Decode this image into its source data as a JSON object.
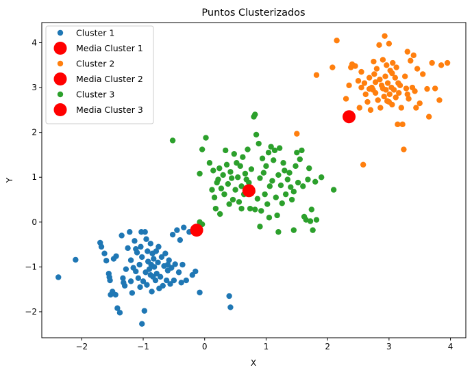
{
  "chart_data": {
    "type": "scatter",
    "title": "Puntos Clusterizados",
    "xlabel": "X",
    "ylabel": "Y",
    "xlim": [
      -2.65,
      4.25
    ],
    "ylim": [
      -2.58,
      4.45
    ],
    "xticks": [
      -2,
      -1,
      0,
      1,
      2,
      3,
      4
    ],
    "yticks": [
      -2,
      -1,
      0,
      1,
      2,
      3,
      4
    ],
    "grid": false,
    "legend_position": "top-left",
    "series": [
      {
        "name": "Cluster 1",
        "color": "#1f77b4",
        "marker": "small",
        "points": [
          [
            -2.38,
            -1.23
          ],
          [
            -2.1,
            -0.84
          ],
          [
            -1.7,
            -0.46
          ],
          [
            -1.68,
            -0.55
          ],
          [
            -1.63,
            -0.7
          ],
          [
            -1.6,
            -0.86
          ],
          [
            -1.56,
            -1.15
          ],
          [
            -1.55,
            -1.23
          ],
          [
            -1.54,
            -1.3
          ],
          [
            -1.53,
            -1.62
          ],
          [
            -1.5,
            -1.55
          ],
          [
            -1.48,
            -0.82
          ],
          [
            -1.44,
            -0.76
          ],
          [
            -1.42,
            -1.92
          ],
          [
            -1.38,
            -2.02
          ],
          [
            -1.35,
            -0.3
          ],
          [
            -1.33,
            -1.25
          ],
          [
            -1.32,
            -1.35
          ],
          [
            -1.28,
            -1.05
          ],
          [
            -1.25,
            -0.58
          ],
          [
            -1.22,
            -0.22
          ],
          [
            -1.2,
            -0.85
          ],
          [
            -1.18,
            -1.58
          ],
          [
            -1.16,
            -1.02
          ],
          [
            -1.14,
            -0.42
          ],
          [
            -1.12,
            -1.1
          ],
          [
            -1.1,
            -0.68
          ],
          [
            -1.08,
            -1.25
          ],
          [
            -1.06,
            -0.95
          ],
          [
            -1.05,
            -1.45
          ],
          [
            -1.04,
            -0.55
          ],
          [
            -1.03,
            -0.22
          ],
          [
            -1.02,
            -0.78
          ],
          [
            -1.0,
            -1.32
          ],
          [
            -0.98,
            -1.98
          ],
          [
            -0.97,
            -0.22
          ],
          [
            -0.96,
            -1.12
          ],
          [
            -0.95,
            -0.38
          ],
          [
            -0.94,
            -1.4
          ],
          [
            -0.93,
            -0.65
          ],
          [
            -0.92,
            -0.88
          ],
          [
            -0.9,
            -1.05
          ],
          [
            -0.88,
            -1.18
          ],
          [
            -0.87,
            -0.95
          ],
          [
            -0.86,
            -1.55
          ],
          [
            -0.85,
            -0.7
          ],
          [
            -0.84,
            -1.22
          ],
          [
            -0.83,
            -0.82
          ],
          [
            -0.82,
            -1.0
          ],
          [
            -0.8,
            -1.3
          ],
          [
            -0.79,
            -0.65
          ],
          [
            -0.78,
            -1.15
          ],
          [
            -0.76,
            -0.9
          ],
          [
            -0.75,
            -0.55
          ],
          [
            -0.74,
            -1.48
          ],
          [
            -0.72,
            -1.22
          ],
          [
            -0.7,
            -0.78
          ],
          [
            -0.68,
            -1.42
          ],
          [
            -0.66,
            -0.98
          ],
          [
            -0.64,
            -0.7
          ],
          [
            -0.62,
            -1.3
          ],
          [
            -0.6,
            -1.08
          ],
          [
            -0.58,
            -0.85
          ],
          [
            -0.56,
            -1.38
          ],
          [
            -0.54,
            -1.02
          ],
          [
            -0.52,
            -0.28
          ],
          [
            -0.5,
            -1.3
          ],
          [
            -0.48,
            -0.94
          ],
          [
            -0.45,
            -0.18
          ],
          [
            -0.42,
            -1.12
          ],
          [
            -0.4,
            -0.4
          ],
          [
            -0.38,
            -1.35
          ],
          [
            -0.36,
            -0.95
          ],
          [
            -0.34,
            -0.12
          ],
          [
            -0.3,
            -1.3
          ],
          [
            -0.25,
            -0.22
          ],
          [
            -0.2,
            -1.18
          ],
          [
            -0.15,
            -1.1
          ],
          [
            -0.08,
            -1.57
          ],
          [
            0.4,
            -1.65
          ],
          [
            0.42,
            -1.9
          ],
          [
            -1.02,
            -2.27
          ],
          [
            -1.3,
            -1.42
          ],
          [
            -1.45,
            -1.62
          ],
          [
            -1.12,
            -0.6
          ],
          [
            -0.88,
            -0.48
          ],
          [
            -0.6,
            -0.95
          ],
          [
            -1.2,
            -1.32
          ]
        ]
      },
      {
        "name": "Cluster 2",
        "color": "#ff7f0e",
        "marker": "small",
        "points": [
          [
            1.5,
            1.97
          ],
          [
            1.82,
            3.28
          ],
          [
            2.08,
            3.45
          ],
          [
            2.15,
            4.05
          ],
          [
            2.3,
            2.75
          ],
          [
            2.35,
            3.05
          ],
          [
            2.38,
            3.45
          ],
          [
            2.4,
            3.52
          ],
          [
            2.45,
            3.48
          ],
          [
            2.5,
            3.15
          ],
          [
            2.52,
            2.55
          ],
          [
            2.55,
            3.0
          ],
          [
            2.58,
            1.28
          ],
          [
            2.6,
            3.1
          ],
          [
            2.62,
            2.85
          ],
          [
            2.65,
            2.68
          ],
          [
            2.68,
            3.22
          ],
          [
            2.7,
            2.5
          ],
          [
            2.72,
            3.0
          ],
          [
            2.74,
            2.95
          ],
          [
            2.75,
            3.58
          ],
          [
            2.76,
            3.3
          ],
          [
            2.78,
            2.88
          ],
          [
            2.8,
            3.42
          ],
          [
            2.82,
            2.72
          ],
          [
            2.84,
            3.95
          ],
          [
            2.86,
            2.55
          ],
          [
            2.88,
            3.05
          ],
          [
            2.9,
            3.62
          ],
          [
            2.92,
            2.8
          ],
          [
            2.93,
            4.15
          ],
          [
            2.94,
            3.25
          ],
          [
            2.95,
            2.95
          ],
          [
            2.96,
            3.5
          ],
          [
            2.97,
            2.7
          ],
          [
            2.98,
            3.1
          ],
          [
            3.0,
            3.98
          ],
          [
            3.01,
            2.85
          ],
          [
            3.02,
            3.38
          ],
          [
            3.04,
            3.0
          ],
          [
            3.05,
            2.62
          ],
          [
            3.06,
            3.55
          ],
          [
            3.08,
            2.95
          ],
          [
            3.1,
            3.22
          ],
          [
            3.11,
            2.78
          ],
          [
            3.12,
            3.45
          ],
          [
            3.14,
            2.18
          ],
          [
            3.16,
            2.88
          ],
          [
            3.18,
            3.05
          ],
          [
            3.2,
            2.55
          ],
          [
            3.22,
            2.18
          ],
          [
            3.24,
            1.62
          ],
          [
            3.26,
            3.25
          ],
          [
            3.28,
            2.98
          ],
          [
            3.3,
            3.8
          ],
          [
            3.32,
            2.75
          ],
          [
            3.35,
            3.6
          ],
          [
            3.38,
            3.0
          ],
          [
            3.4,
            3.72
          ],
          [
            3.42,
            2.92
          ],
          [
            3.44,
            2.55
          ],
          [
            3.46,
            3.42
          ],
          [
            3.5,
            2.65
          ],
          [
            3.55,
            3.3
          ],
          [
            3.62,
            2.97
          ],
          [
            3.65,
            2.35
          ],
          [
            3.7,
            3.55
          ],
          [
            3.75,
            2.98
          ],
          [
            3.82,
            2.72
          ],
          [
            3.85,
            3.5
          ],
          [
            3.95,
            3.55
          ],
          [
            2.55,
            3.35
          ],
          [
            2.68,
            2.97
          ],
          [
            2.85,
            3.18
          ],
          [
            3.0,
            2.68
          ],
          [
            3.15,
            3.1
          ],
          [
            3.3,
            2.85
          ],
          [
            3.05,
            3.32
          ],
          [
            2.9,
            2.98
          ],
          [
            2.78,
            3.12
          ]
        ]
      },
      {
        "name": "Cluster 3",
        "color": "#2ca02c",
        "marker": "small",
        "points": [
          [
            -0.52,
            1.82
          ],
          [
            -0.08,
            0.0
          ],
          [
            -0.04,
            -0.05
          ],
          [
            -0.08,
            1.08
          ],
          [
            -0.04,
            1.62
          ],
          [
            0.02,
            1.88
          ],
          [
            0.08,
            1.32
          ],
          [
            0.12,
            0.72
          ],
          [
            0.14,
            1.15
          ],
          [
            0.16,
            0.55
          ],
          [
            0.18,
            0.3
          ],
          [
            0.2,
            0.88
          ],
          [
            0.22,
            0.95
          ],
          [
            0.24,
            1.2
          ],
          [
            0.25,
            0.18
          ],
          [
            0.27,
            0.75
          ],
          [
            0.3,
            1.05
          ],
          [
            0.32,
            0.62
          ],
          [
            0.34,
            1.6
          ],
          [
            0.36,
            1.28
          ],
          [
            0.38,
            0.85
          ],
          [
            0.4,
            0.4
          ],
          [
            0.42,
            1.12
          ],
          [
            0.44,
            0.98
          ],
          [
            0.46,
            0.5
          ],
          [
            0.48,
            1.52
          ],
          [
            0.5,
            0.72
          ],
          [
            0.52,
            1.32
          ],
          [
            0.54,
            1.0
          ],
          [
            0.56,
            0.45
          ],
          [
            0.58,
            1.25
          ],
          [
            0.6,
            0.8
          ],
          [
            0.62,
            1.45
          ],
          [
            0.64,
            0.62
          ],
          [
            0.66,
            1.08
          ],
          [
            0.68,
            0.95
          ],
          [
            0.7,
            1.62
          ],
          [
            0.72,
            0.88
          ],
          [
            0.74,
            0.3
          ],
          [
            0.76,
            1.18
          ],
          [
            0.78,
            0.68
          ],
          [
            0.8,
            2.35
          ],
          [
            0.82,
            2.4
          ],
          [
            0.84,
            1.95
          ],
          [
            0.86,
            0.52
          ],
          [
            0.88,
            1.75
          ],
          [
            0.9,
            0.98
          ],
          [
            0.92,
            0.25
          ],
          [
            0.94,
            1.42
          ],
          [
            0.96,
            1.1
          ],
          [
            0.98,
            0.62
          ],
          [
            1.0,
            1.25
          ],
          [
            1.02,
            0.4
          ],
          [
            1.04,
            1.55
          ],
          [
            1.06,
            0.8
          ],
          [
            1.08,
            1.68
          ],
          [
            1.1,
            0.92
          ],
          [
            1.12,
            1.38
          ],
          [
            1.14,
            1.6
          ],
          [
            1.16,
            0.55
          ],
          [
            1.18,
            0.15
          ],
          [
            1.2,
            1.05
          ],
          [
            1.22,
            1.65
          ],
          [
            1.24,
            0.82
          ],
          [
            1.26,
            0.42
          ],
          [
            1.28,
            1.32
          ],
          [
            1.3,
            1.15
          ],
          [
            1.32,
            0.62
          ],
          [
            1.35,
            0.95
          ],
          [
            1.38,
            1.1
          ],
          [
            1.4,
            0.78
          ],
          [
            1.42,
            0.5
          ],
          [
            1.45,
            0.68
          ],
          [
            1.48,
            1.25
          ],
          [
            1.5,
            1.55
          ],
          [
            1.52,
            0.88
          ],
          [
            1.55,
            1.4
          ],
          [
            1.58,
            1.6
          ],
          [
            1.6,
            0.8
          ],
          [
            1.62,
            0.12
          ],
          [
            1.65,
            0.05
          ],
          [
            1.68,
            0.95
          ],
          [
            1.7,
            1.2
          ],
          [
            1.72,
            0.02
          ],
          [
            1.74,
            0.28
          ],
          [
            1.76,
            -0.18
          ],
          [
            1.8,
            0.9
          ],
          [
            1.82,
            0.05
          ],
          [
            1.9,
            1.0
          ],
          [
            2.1,
            0.72
          ],
          [
            0.9,
            -0.1
          ],
          [
            1.2,
            -0.22
          ],
          [
            1.45,
            -0.18
          ],
          [
            0.82,
            0.28
          ],
          [
            1.05,
            0.1
          ],
          [
            0.6,
            0.3
          ]
        ]
      },
      {
        "name": "Media Cluster 1",
        "color": "#ff0000",
        "marker": "large",
        "points": [
          [
            -0.13,
            -0.18
          ]
        ]
      },
      {
        "name": "Media Cluster 2",
        "color": "#ff0000",
        "marker": "large",
        "points": [
          [
            2.35,
            2.35
          ]
        ]
      },
      {
        "name": "Media Cluster 3",
        "color": "#ff0000",
        "marker": "large",
        "points": [
          [
            0.72,
            0.7
          ]
        ]
      }
    ],
    "legend": [
      {
        "label": "Cluster 1",
        "color": "#1f77b4",
        "marker": "small"
      },
      {
        "label": "Media Cluster 1",
        "color": "#ff0000",
        "marker": "large"
      },
      {
        "label": "Cluster 2",
        "color": "#ff7f0e",
        "marker": "small"
      },
      {
        "label": "Media Cluster 2",
        "color": "#ff0000",
        "marker": "large"
      },
      {
        "label": "Cluster 3",
        "color": "#2ca02c",
        "marker": "small"
      },
      {
        "label": "Media Cluster 3",
        "color": "#ff0000",
        "marker": "large"
      }
    ]
  }
}
